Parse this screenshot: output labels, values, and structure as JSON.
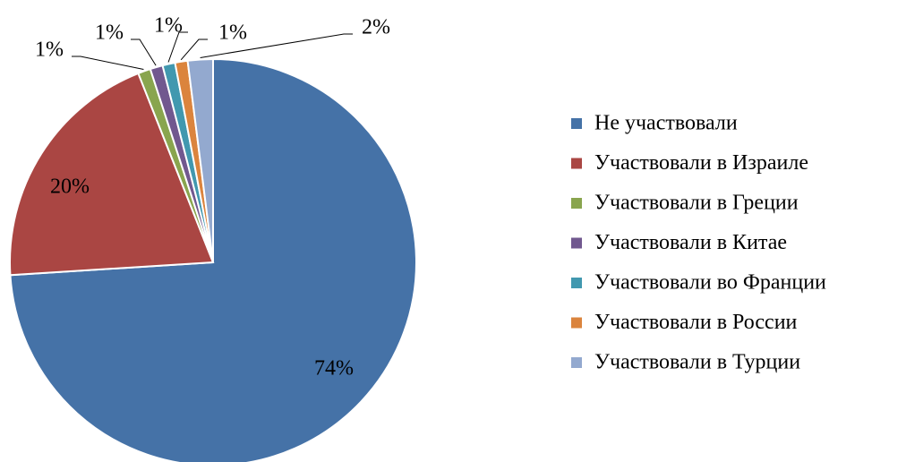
{
  "chart_data": {
    "type": "pie",
    "categories": [
      "Не участвовали",
      "Участвовали в Израиле",
      "Участвовали в Греции",
      "Участвовали в Китае",
      "Участвовали во Франции",
      "Участвовали в России",
      "Участвовали в Турции"
    ],
    "values": [
      74,
      20,
      1,
      1,
      1,
      1,
      2
    ],
    "value_labels": [
      "74%",
      "20%",
      "1%",
      "1%",
      "1%",
      "1%",
      "2%"
    ],
    "colors": [
      "#4572a7",
      "#aa4643",
      "#89a54e",
      "#71588f",
      "#4198af",
      "#db843d",
      "#93a9cf"
    ],
    "legend": "right"
  }
}
